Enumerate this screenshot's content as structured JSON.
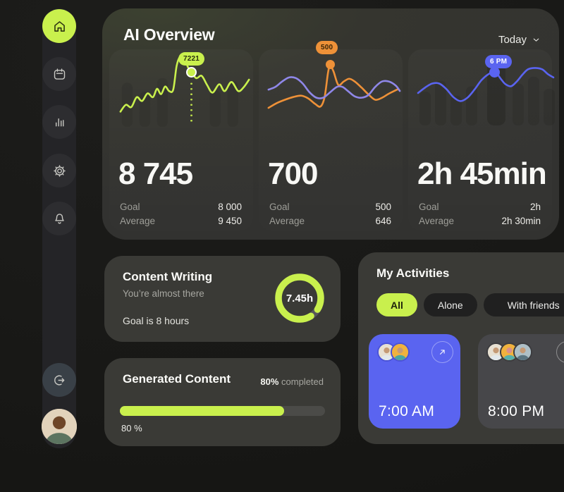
{
  "colors": {
    "accent": "#c9f04d",
    "accent_ink": "#2a2f10",
    "blue": "#5a64f0",
    "orange": "#ee9138",
    "purple": "#8f87e8",
    "panel": "#35352f",
    "card": "#3a3a36",
    "tile_dark": "#47474a"
  },
  "header": {
    "title": "AI Overview",
    "period": "Today"
  },
  "sidebar": {
    "items": [
      {
        "name": "home",
        "icon": "home-icon",
        "active": true
      },
      {
        "name": "calendar",
        "icon": "calendar-icon",
        "active": false
      },
      {
        "name": "statistics",
        "icon": "bar-chart-icon",
        "active": false
      },
      {
        "name": "settings",
        "icon": "gear-icon",
        "active": false
      },
      {
        "name": "notifications",
        "icon": "bell-icon",
        "active": false
      }
    ],
    "logout_icon": "logout-icon",
    "profile": "user-avatar"
  },
  "stats": [
    {
      "value": "8 745",
      "goal_label": "Goal",
      "goal": "8 000",
      "average_label": "Average",
      "average": "9 450"
    },
    {
      "value": "700",
      "goal_label": "Goal",
      "goal": "500",
      "average_label": "Average",
      "average": "646"
    },
    {
      "value": "2h 45min",
      "goal_label": "Goal",
      "goal": "2h",
      "average_label": "Average",
      "average": "2h 30min"
    }
  ],
  "chart_data": [
    {
      "type": "line",
      "badge": {
        "text": "7221",
        "bg": "#c9f04d",
        "fg": "#2a2f10"
      },
      "dot": {
        "color": "#c9f04d",
        "ring": "#ffffff"
      },
      "current": 8745,
      "goal": 8000,
      "average": 9450,
      "bar_color": "rgba(0,0,0,0.07)",
      "background_bars": [
        [
          14,
          42
        ],
        [
          40,
          54
        ],
        [
          66,
          36
        ],
        [
          144,
          52
        ],
        [
          170,
          40
        ]
      ],
      "series": [
        {
          "name": "ai-output",
          "color": "#c9f04d",
          "points": [
            [
              4,
              80
            ],
            [
              12,
              71
            ],
            [
              20,
              74
            ],
            [
              28,
              61
            ],
            [
              36,
              66
            ],
            [
              44,
              56
            ],
            [
              52,
              61
            ],
            [
              58,
              50
            ],
            [
              64,
              57
            ],
            [
              70,
              47
            ],
            [
              76,
              53
            ],
            [
              82,
              51
            ],
            [
              87,
              20
            ],
            [
              92,
              8
            ],
            [
              98,
              9
            ],
            [
              104,
              22
            ],
            [
              109,
              28
            ],
            [
              116,
              36
            ],
            [
              124,
              33
            ],
            [
              132,
              45
            ],
            [
              140,
              55
            ],
            [
              150,
              44
            ],
            [
              158,
              53
            ],
            [
              168,
              41
            ],
            [
              178,
              53
            ],
            [
              186,
              48
            ],
            [
              194,
              38
            ]
          ]
        }
      ]
    },
    {
      "type": "line",
      "badge": {
        "text": "500",
        "bg": "#ee9138",
        "fg": "#3a2508"
      },
      "dot": {
        "color": "#ee9138"
      },
      "current": 700,
      "goal": 500,
      "average": 646,
      "series": [
        {
          "name": "generated",
          "color": "#ee9138",
          "points": [
            [
              4,
              74
            ],
            [
              16,
              67
            ],
            [
              28,
              62
            ],
            [
              40,
              58
            ],
            [
              52,
              56
            ],
            [
              62,
              60
            ],
            [
              72,
              68
            ],
            [
              80,
              72
            ],
            [
              86,
              58
            ],
            [
              91,
              22
            ],
            [
              94,
              12
            ],
            [
              99,
              20
            ],
            [
              106,
              40
            ],
            [
              114,
              35
            ],
            [
              122,
              31
            ],
            [
              130,
              35
            ],
            [
              140,
              44
            ],
            [
              150,
              54
            ],
            [
              160,
              62
            ],
            [
              170,
              59
            ],
            [
              180,
              53
            ],
            [
              194,
              46
            ]
          ]
        },
        {
          "name": "baseline",
          "color": "#8f87e8",
          "points": [
            [
              4,
              47
            ],
            [
              14,
              43
            ],
            [
              24,
              35
            ],
            [
              34,
              29
            ],
            [
              44,
              30
            ],
            [
              54,
              38
            ],
            [
              64,
              51
            ],
            [
              74,
              59
            ],
            [
              84,
              59
            ],
            [
              94,
              51
            ],
            [
              104,
              43
            ],
            [
              112,
              43
            ],
            [
              120,
              49
            ],
            [
              130,
              57
            ],
            [
              140,
              59
            ],
            [
              150,
              55
            ],
            [
              160,
              43
            ],
            [
              170,
              35
            ],
            [
              180,
              35
            ],
            [
              190,
              41
            ],
            [
              196,
              49
            ]
          ]
        }
      ]
    },
    {
      "type": "line",
      "badge": {
        "text": "6 PM",
        "bg": "#5a64f0",
        "fg": "#ffffff"
      },
      "dot": {
        "color": "#5a64f0"
      },
      "current": "2h 45min",
      "goal": "2h",
      "average": "2h 30min",
      "bar_color": "rgba(0,0,0,0.09)",
      "background_bars": [
        [
          14,
          50
        ],
        [
          36,
          34
        ],
        [
          58,
          56
        ],
        [
          80,
          42
        ],
        [
          146,
          38
        ],
        [
          168,
          28
        ],
        [
          190,
          46
        ]
      ],
      "highlight_band": {
        "x": 102,
        "w": 26,
        "color": "rgba(0,0,0,0.16)"
      },
      "series": [
        {
          "name": "time-spent",
          "color": "#5a64f0",
          "points": [
            [
              4,
              52
            ],
            [
              14,
              44
            ],
            [
              24,
              38
            ],
            [
              34,
              38
            ],
            [
              44,
              46
            ],
            [
              54,
              58
            ],
            [
              64,
              64
            ],
            [
              74,
              59
            ],
            [
              84,
              47
            ],
            [
              94,
              33
            ],
            [
              104,
              24
            ],
            [
              110,
              22
            ],
            [
              116,
              24
            ],
            [
              122,
              32
            ],
            [
              128,
              39
            ],
            [
              136,
              42
            ],
            [
              144,
              35
            ],
            [
              152,
              25
            ],
            [
              160,
              17
            ],
            [
              170,
              15
            ],
            [
              180,
              17
            ],
            [
              188,
              24
            ],
            [
              196,
              29
            ]
          ]
        }
      ]
    }
  ],
  "content_writing": {
    "title": "Content Writing",
    "subtitle": "You’re almost there",
    "goal_text": "Goal is 8 hours",
    "progress_label": "7.45h",
    "progress_pct": 93,
    "current_hours": 7.45,
    "goal_hours": 8
  },
  "generated_content": {
    "title": "Generated Content",
    "completed_bold": "80%",
    "completed_rest": "completed",
    "bar_pct": 80,
    "below_label": "80 %"
  },
  "activities": {
    "title": "My Activities",
    "tabs": [
      {
        "label": "All",
        "active": true
      },
      {
        "label": "Alone",
        "active": false
      },
      {
        "label": "With friends",
        "active": false
      }
    ],
    "tiles": [
      {
        "time": "7:00 AM",
        "bg": "#5a64f0",
        "avatar_ring": "#4a53d8",
        "avatars": [
          {
            "bg": "#e7e0d2",
            "head": "#c59a75",
            "body": "#e3e9ec"
          },
          {
            "bg": "#f0b23e",
            "head": "#c59a75",
            "body": "#4aa6a2"
          }
        ]
      },
      {
        "time": "8:00 PM",
        "bg": "#47474a",
        "avatar_ring": "#3c3c3f",
        "avatars": [
          {
            "bg": "#e7e0d2",
            "head": "#c59a75",
            "body": "#e3e9ec"
          },
          {
            "bg": "#f0b23e",
            "head": "#d98f8a",
            "body": "#56b0ac"
          },
          {
            "bg": "#aebfc6",
            "head": "#c59a75",
            "body": "#5a7480"
          }
        ]
      }
    ]
  }
}
